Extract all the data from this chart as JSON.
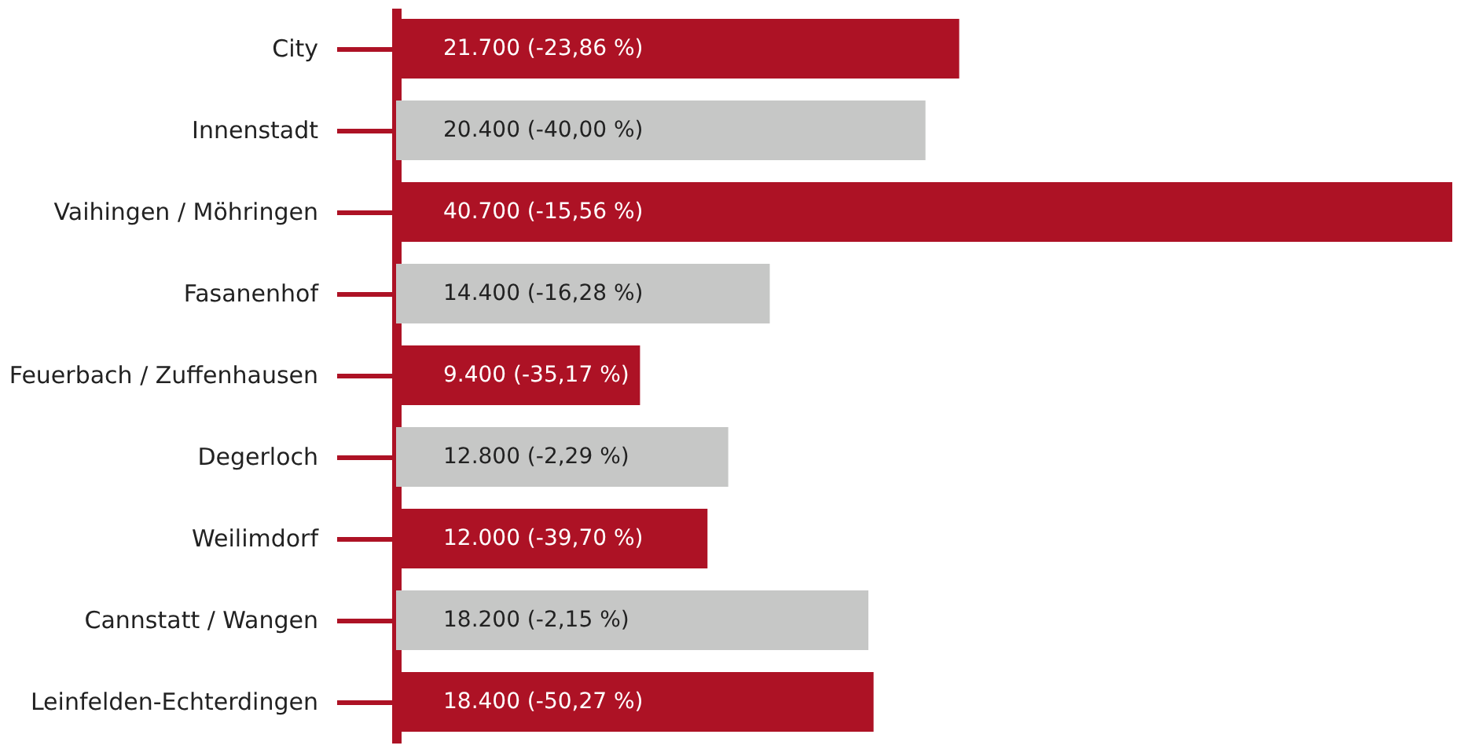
{
  "chart_data": {
    "type": "bar",
    "orientation": "horizontal",
    "categories": [
      "City",
      "Innenstadt",
      "Vaihingen / Möhringen",
      "Fasanenhof",
      "Feuerbach / Zuffenhausen",
      "Degerloch",
      "Weilimdorf",
      "Cannstatt / Wangen",
      "Leinfelden-Echterdingen"
    ],
    "values": [
      21700,
      20400,
      40700,
      14400,
      9400,
      12800,
      12000,
      18200,
      18400
    ],
    "colors": [
      "#ad1225",
      "#c6c7c6",
      "#ad1225",
      "#c6c7c6",
      "#ad1225",
      "#c6c7c6",
      "#ad1225",
      "#c6c7c6",
      "#ad1225"
    ],
    "value_labels": [
      "21.700 (-23,86 %)",
      "20.400 (-40,00 %)",
      "40.700 (-15,56 %)",
      "14.400 (-16,28 %)",
      "9.400 (-35,17 %)",
      "12.800 (-2,29 %)",
      "12.000 (-39,70 %)",
      "18.200 (-2,15 %)",
      "18.400 (-50,27 %)"
    ],
    "grid": false
  }
}
